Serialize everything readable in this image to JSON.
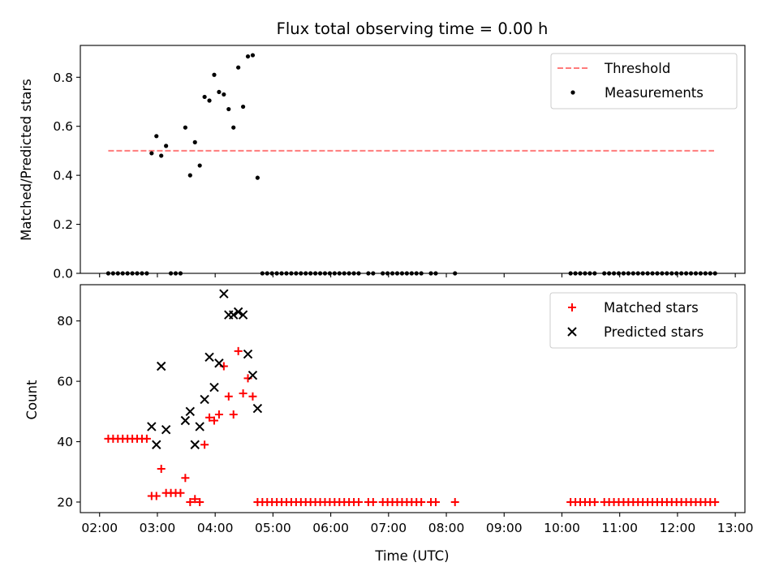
{
  "chart_data": {
    "type": "scatter",
    "title": "Flux total observing time = 0.00 h",
    "xlabel": "Time (UTC)",
    "x_ticks": [
      "02:00",
      "03:00",
      "04:00",
      "05:00",
      "06:00",
      "07:00",
      "08:00",
      "09:00",
      "10:00",
      "11:00",
      "12:00",
      "13:00"
    ],
    "xlim": [
      "01:40",
      "13:10"
    ],
    "panels": [
      {
        "ylabel": "Matched/Predicted stars",
        "ylim": [
          0,
          0.93
        ],
        "y_ticks": [
          0.0,
          0.2,
          0.4,
          0.6,
          0.8
        ],
        "y_tick_labels": [
          "0.0",
          "0.2",
          "0.4",
          "0.6",
          "0.8"
        ],
        "legend_position": "top-right",
        "series": [
          {
            "name": "Threshold",
            "kind": "dashed-line",
            "color": "#ff7b7b",
            "x": [
              "02:09",
              "12:38"
            ],
            "y": [
              0.5,
              0.5
            ]
          },
          {
            "name": "Measurements",
            "kind": "dot",
            "color": "#000000",
            "points": [
              [
                "02:09",
                0
              ],
              [
                "02:14",
                0
              ],
              [
                "02:19",
                0
              ],
              [
                "02:24",
                0
              ],
              [
                "02:29",
                0
              ],
              [
                "02:34",
                0
              ],
              [
                "02:39",
                0
              ],
              [
                "02:44",
                0
              ],
              [
                "02:49",
                0
              ],
              [
                "02:54",
                0.49
              ],
              [
                "02:59",
                0.56
              ],
              [
                "03:04",
                0.48
              ],
              [
                "03:09",
                0.52
              ],
              [
                "03:14",
                0
              ],
              [
                "03:19",
                0
              ],
              [
                "03:24",
                0
              ],
              [
                "03:29",
                0.595
              ],
              [
                "03:34",
                0.4
              ],
              [
                "03:39",
                0.535
              ],
              [
                "03:44",
                0.44
              ],
              [
                "03:49",
                0.72
              ],
              [
                "03:54",
                0.705
              ],
              [
                "03:59",
                0.81
              ],
              [
                "04:04",
                0.74
              ],
              [
                "04:09",
                0.73
              ],
              [
                "04:14",
                0.67
              ],
              [
                "04:19",
                0.595
              ],
              [
                "04:24",
                0.84
              ],
              [
                "04:29",
                0.68
              ],
              [
                "04:34",
                0.885
              ],
              [
                "04:39",
                0.89
              ],
              [
                "04:44",
                0.39
              ],
              [
                "04:49",
                0
              ],
              [
                "04:54",
                0
              ],
              [
                "04:59",
                0
              ],
              [
                "05:04",
                0
              ],
              [
                "05:09",
                0
              ],
              [
                "05:14",
                0
              ],
              [
                "05:19",
                0
              ],
              [
                "05:24",
                0
              ],
              [
                "05:29",
                0
              ],
              [
                "05:34",
                0
              ],
              [
                "05:39",
                0
              ],
              [
                "05:44",
                0
              ],
              [
                "05:49",
                0
              ],
              [
                "05:54",
                0
              ],
              [
                "05:59",
                0
              ],
              [
                "06:04",
                0
              ],
              [
                "06:09",
                0
              ],
              [
                "06:14",
                0
              ],
              [
                "06:19",
                0
              ],
              [
                "06:24",
                0
              ],
              [
                "06:29",
                0
              ],
              [
                "06:39",
                0
              ],
              [
                "06:44",
                0
              ],
              [
                "06:54",
                0
              ],
              [
                "06:59",
                0
              ],
              [
                "07:04",
                0
              ],
              [
                "07:09",
                0
              ],
              [
                "07:14",
                0
              ],
              [
                "07:19",
                0
              ],
              [
                "07:24",
                0
              ],
              [
                "07:29",
                0
              ],
              [
                "07:34",
                0
              ],
              [
                "07:44",
                0
              ],
              [
                "07:49",
                0
              ],
              [
                "08:09",
                0
              ],
              [
                "10:09",
                0
              ],
              [
                "10:14",
                0
              ],
              [
                "10:19",
                0
              ],
              [
                "10:24",
                0
              ],
              [
                "10:29",
                0
              ],
              [
                "10:34",
                0
              ],
              [
                "10:44",
                0
              ],
              [
                "10:49",
                0
              ],
              [
                "10:54",
                0
              ],
              [
                "10:59",
                0
              ],
              [
                "11:04",
                0
              ],
              [
                "11:09",
                0
              ],
              [
                "11:14",
                0
              ],
              [
                "11:19",
                0
              ],
              [
                "11:24",
                0
              ],
              [
                "11:29",
                0
              ],
              [
                "11:34",
                0
              ],
              [
                "11:39",
                0
              ],
              [
                "11:44",
                0
              ],
              [
                "11:49",
                0
              ],
              [
                "11:54",
                0
              ],
              [
                "11:59",
                0
              ],
              [
                "12:04",
                0
              ],
              [
                "12:09",
                0
              ],
              [
                "12:14",
                0
              ],
              [
                "12:19",
                0
              ],
              [
                "12:24",
                0
              ],
              [
                "12:29",
                0
              ],
              [
                "12:34",
                0
              ],
              [
                "12:39",
                0
              ]
            ]
          }
        ]
      },
      {
        "ylabel": "Count",
        "ylim": [
          16.5,
          92
        ],
        "y_ticks": [
          20,
          40,
          60,
          80
        ],
        "y_tick_labels": [
          "20",
          "40",
          "60",
          "80"
        ],
        "legend_position": "top-right",
        "series": [
          {
            "name": "Matched stars",
            "kind": "plus",
            "color": "#ff0000",
            "points": [
              [
                "02:09",
                41
              ],
              [
                "02:14",
                41
              ],
              [
                "02:19",
                41
              ],
              [
                "02:24",
                41
              ],
              [
                "02:29",
                41
              ],
              [
                "02:34",
                41
              ],
              [
                "02:39",
                41
              ],
              [
                "02:44",
                41
              ],
              [
                "02:49",
                41
              ],
              [
                "02:54",
                22
              ],
              [
                "02:59",
                22
              ],
              [
                "03:04",
                31
              ],
              [
                "03:09",
                23
              ],
              [
                "03:14",
                23
              ],
              [
                "03:19",
                23
              ],
              [
                "03:24",
                23
              ],
              [
                "03:29",
                28
              ],
              [
                "03:34",
                20
              ],
              [
                "03:39",
                21
              ],
              [
                "03:44",
                20
              ],
              [
                "03:49",
                39
              ],
              [
                "03:54",
                48
              ],
              [
                "03:59",
                47
              ],
              [
                "04:04",
                49
              ],
              [
                "04:09",
                65
              ],
              [
                "04:14",
                55
              ],
              [
                "04:19",
                49
              ],
              [
                "04:24",
                70
              ],
              [
                "04:29",
                56
              ],
              [
                "04:34",
                61
              ],
              [
                "04:39",
                55
              ],
              [
                "04:44",
                20
              ],
              [
                "04:49",
                20
              ],
              [
                "04:54",
                20
              ],
              [
                "04:59",
                20
              ],
              [
                "05:04",
                20
              ],
              [
                "05:09",
                20
              ],
              [
                "05:14",
                20
              ],
              [
                "05:19",
                20
              ],
              [
                "05:24",
                20
              ],
              [
                "05:29",
                20
              ],
              [
                "05:34",
                20
              ],
              [
                "05:39",
                20
              ],
              [
                "05:44",
                20
              ],
              [
                "05:49",
                20
              ],
              [
                "05:54",
                20
              ],
              [
                "05:59",
                20
              ],
              [
                "06:04",
                20
              ],
              [
                "06:09",
                20
              ],
              [
                "06:14",
                20
              ],
              [
                "06:19",
                20
              ],
              [
                "06:24",
                20
              ],
              [
                "06:29",
                20
              ],
              [
                "06:39",
                20
              ],
              [
                "06:44",
                20
              ],
              [
                "06:54",
                20
              ],
              [
                "06:59",
                20
              ],
              [
                "07:04",
                20
              ],
              [
                "07:09",
                20
              ],
              [
                "07:14",
                20
              ],
              [
                "07:19",
                20
              ],
              [
                "07:24",
                20
              ],
              [
                "07:29",
                20
              ],
              [
                "07:34",
                20
              ],
              [
                "07:44",
                20
              ],
              [
                "07:49",
                20
              ],
              [
                "08:09",
                20
              ],
              [
                "10:09",
                20
              ],
              [
                "10:14",
                20
              ],
              [
                "10:19",
                20
              ],
              [
                "10:24",
                20
              ],
              [
                "10:29",
                20
              ],
              [
                "10:34",
                20
              ],
              [
                "10:44",
                20
              ],
              [
                "10:49",
                20
              ],
              [
                "10:54",
                20
              ],
              [
                "10:59",
                20
              ],
              [
                "11:04",
                20
              ],
              [
                "11:09",
                20
              ],
              [
                "11:14",
                20
              ],
              [
                "11:19",
                20
              ],
              [
                "11:24",
                20
              ],
              [
                "11:29",
                20
              ],
              [
                "11:34",
                20
              ],
              [
                "11:39",
                20
              ],
              [
                "11:44",
                20
              ],
              [
                "11:49",
                20
              ],
              [
                "11:54",
                20
              ],
              [
                "11:59",
                20
              ],
              [
                "12:04",
                20
              ],
              [
                "12:09",
                20
              ],
              [
                "12:14",
                20
              ],
              [
                "12:19",
                20
              ],
              [
                "12:24",
                20
              ],
              [
                "12:29",
                20
              ],
              [
                "12:34",
                20
              ],
              [
                "12:39",
                20
              ]
            ]
          },
          {
            "name": "Predicted stars",
            "kind": "x",
            "color": "#000000",
            "points": [
              [
                "02:54",
                45
              ],
              [
                "02:59",
                39
              ],
              [
                "03:04",
                65
              ],
              [
                "03:09",
                44
              ],
              [
                "03:29",
                47
              ],
              [
                "03:34",
                50
              ],
              [
                "03:39",
                39
              ],
              [
                "03:44",
                45
              ],
              [
                "03:49",
                54
              ],
              [
                "03:54",
                68
              ],
              [
                "03:59",
                58
              ],
              [
                "04:04",
                66
              ],
              [
                "04:09",
                89
              ],
              [
                "04:14",
                82
              ],
              [
                "04:19",
                82
              ],
              [
                "04:24",
                83
              ],
              [
                "04:29",
                82
              ],
              [
                "04:34",
                69
              ],
              [
                "04:39",
                62
              ],
              [
                "04:44",
                51
              ]
            ]
          }
        ]
      }
    ]
  }
}
